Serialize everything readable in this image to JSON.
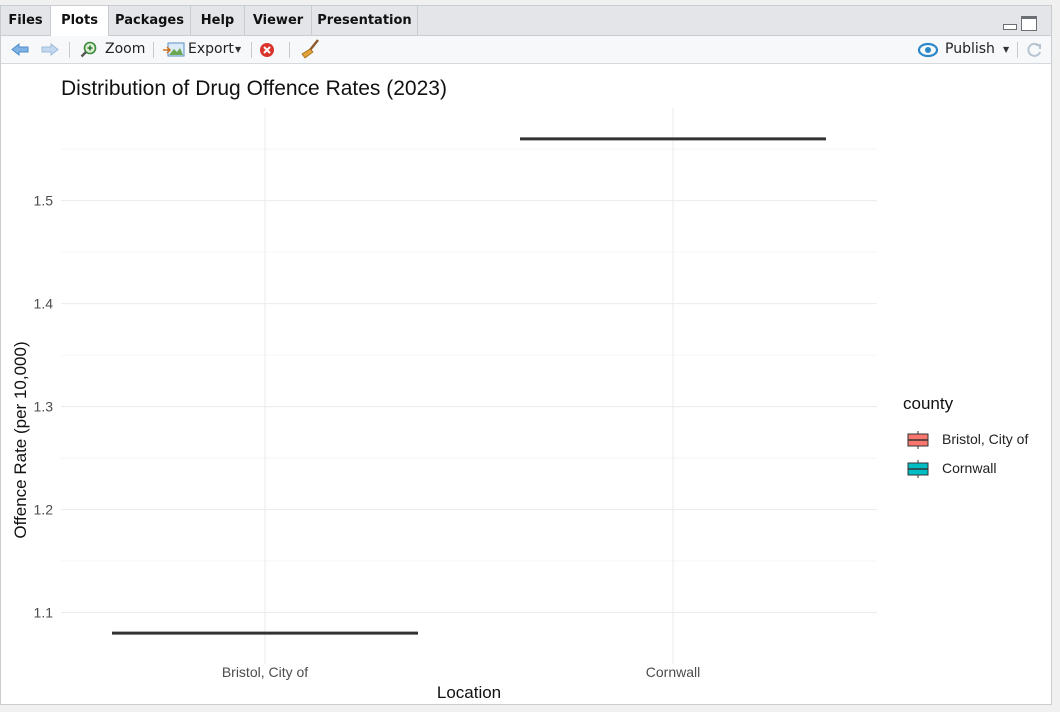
{
  "tabs": [
    "Files",
    "Plots",
    "Packages",
    "Help",
    "Viewer",
    "Presentation"
  ],
  "active_tab": "Plots",
  "toolbar": {
    "zoom_label": "Zoom",
    "export_label": "Export",
    "publish_label": "Publish"
  },
  "colors": {
    "bristol": "#F8766D",
    "cornwall": "#00BFC4",
    "line": "#333333",
    "grid": "#ebebeb"
  },
  "chart_data": {
    "type": "box",
    "title": "Distribution of Drug Offence Rates (2023)",
    "xlabel": "Location",
    "ylabel": "Offence Rate (per 10,000)",
    "categories": [
      "Bristol, City of",
      "Cornwall"
    ],
    "values": [
      1.08,
      1.56
    ],
    "ylim": [
      1.05,
      1.59
    ],
    "yticks": [
      1.1,
      1.2,
      1.3,
      1.4,
      1.5
    ],
    "grid": true,
    "legend": {
      "title": "county",
      "position": "right",
      "entries": [
        "Bristol, City of",
        "Cornwall"
      ]
    }
  }
}
